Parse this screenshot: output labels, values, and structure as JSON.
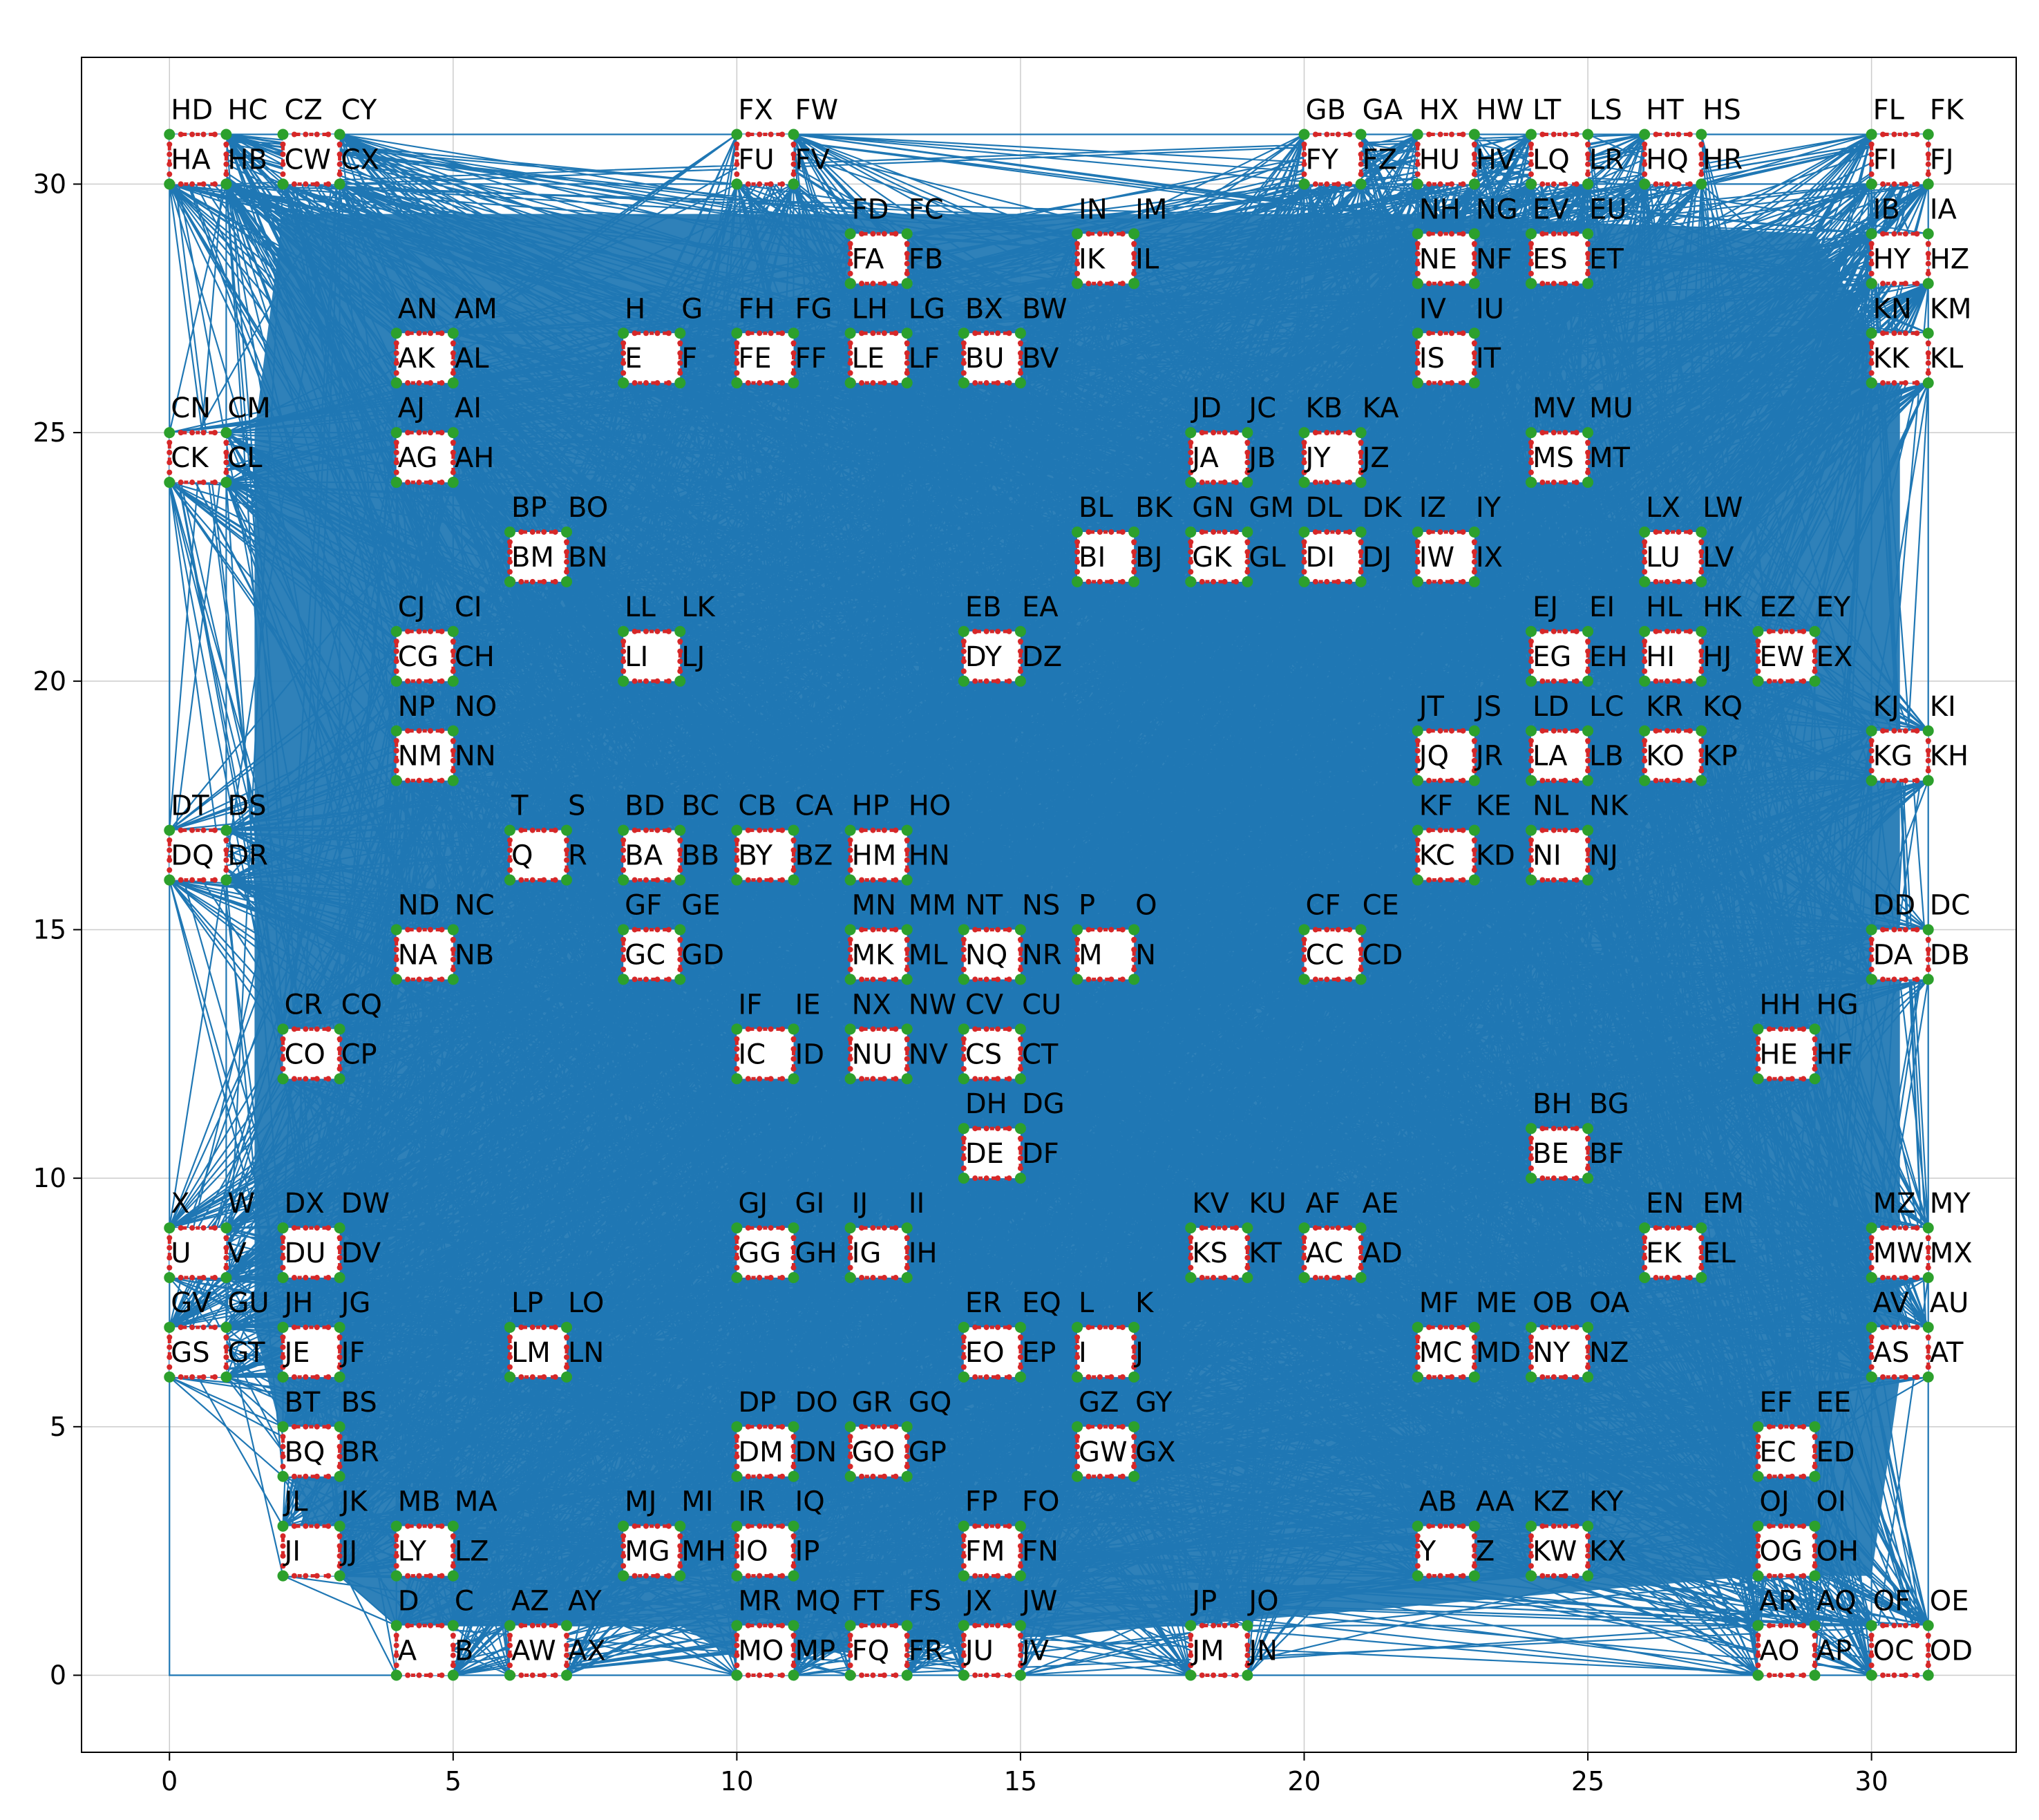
{
  "chart_data": {
    "type": "network-grid",
    "title": "",
    "xlabel": "",
    "ylabel": "",
    "xlim": [
      -1.55,
      32.55
    ],
    "ylim": [
      -1.55,
      32.55
    ],
    "xticks": [
      0,
      5,
      10,
      15,
      20,
      25,
      30
    ],
    "yticks": [
      0,
      5,
      10,
      15,
      20,
      25,
      30
    ],
    "grid": true,
    "colors": {
      "edge": "#1f77b4",
      "node_corner": "#2ca02c",
      "node_mid": "#d62728",
      "grid": "#cccccc"
    },
    "boxes": [
      {
        "x": 0,
        "y": 30,
        "labels": [
          "HA",
          "HB",
          "HC",
          "HD"
        ]
      },
      {
        "x": 2,
        "y": 30,
        "labels": [
          "CW",
          "CX",
          "CY",
          "CZ"
        ]
      },
      {
        "x": 10,
        "y": 30,
        "labels": [
          "FU",
          "FV",
          "FW",
          "FX"
        ]
      },
      {
        "x": 20,
        "y": 30,
        "labels": [
          "FY",
          "FZ",
          "GA",
          "GB"
        ]
      },
      {
        "x": 22,
        "y": 30,
        "labels": [
          "HU",
          "HV",
          "HW",
          "HX"
        ]
      },
      {
        "x": 24,
        "y": 30,
        "labels": [
          "LQ",
          "LR",
          "LS",
          "LT"
        ]
      },
      {
        "x": 26,
        "y": 30,
        "labels": [
          "HQ",
          "HR",
          "HS",
          "HT"
        ]
      },
      {
        "x": 30,
        "y": 30,
        "labels": [
          "FI",
          "FJ",
          "FK",
          "FL"
        ]
      },
      {
        "x": 12,
        "y": 28,
        "labels": [
          "FA",
          "FB",
          "FC",
          "FD"
        ]
      },
      {
        "x": 16,
        "y": 28,
        "labels": [
          "IK",
          "IL",
          "IM",
          "IN"
        ]
      },
      {
        "x": 22,
        "y": 28,
        "labels": [
          "NE",
          "NF",
          "NG",
          "NH"
        ]
      },
      {
        "x": 24,
        "y": 28,
        "labels": [
          "ES",
          "ET",
          "EU",
          "EV"
        ]
      },
      {
        "x": 30,
        "y": 28,
        "labels": [
          "HY",
          "HZ",
          "IA",
          "IB"
        ]
      },
      {
        "x": 4,
        "y": 26,
        "labels": [
          "AK",
          "AL",
          "AM",
          "AN"
        ]
      },
      {
        "x": 8,
        "y": 26,
        "labels": [
          "E",
          "F",
          "G",
          "H"
        ]
      },
      {
        "x": 10,
        "y": 26,
        "labels": [
          "FE",
          "FF",
          "FG",
          "FH"
        ]
      },
      {
        "x": 12,
        "y": 26,
        "labels": [
          "LE",
          "LF",
          "LG",
          "LH"
        ]
      },
      {
        "x": 14,
        "y": 26,
        "labels": [
          "BU",
          "BV",
          "BW",
          "BX"
        ]
      },
      {
        "x": 22,
        "y": 26,
        "labels": [
          "IS",
          "IT",
          "IU",
          "IV"
        ]
      },
      {
        "x": 30,
        "y": 26,
        "labels": [
          "KK",
          "KL",
          "KM",
          "KN"
        ]
      },
      {
        "x": 0,
        "y": 24,
        "labels": [
          "CK",
          "CL",
          "CM",
          "CN"
        ]
      },
      {
        "x": 4,
        "y": 24,
        "labels": [
          "AG",
          "AH",
          "AI",
          "AJ"
        ]
      },
      {
        "x": 18,
        "y": 24,
        "labels": [
          "JA",
          "JB",
          "JC",
          "JD"
        ]
      },
      {
        "x": 20,
        "y": 24,
        "labels": [
          "JY",
          "JZ",
          "KA",
          "KB"
        ]
      },
      {
        "x": 24,
        "y": 24,
        "labels": [
          "MS",
          "MT",
          "MU",
          "MV"
        ]
      },
      {
        "x": 6,
        "y": 22,
        "labels": [
          "BM",
          "BN",
          "BO",
          "BP"
        ]
      },
      {
        "x": 16,
        "y": 22,
        "labels": [
          "BI",
          "BJ",
          "BK",
          "BL"
        ]
      },
      {
        "x": 18,
        "y": 22,
        "labels": [
          "GK",
          "GL",
          "GM",
          "GN"
        ]
      },
      {
        "x": 20,
        "y": 22,
        "labels": [
          "DI",
          "DJ",
          "DK",
          "DL"
        ]
      },
      {
        "x": 22,
        "y": 22,
        "labels": [
          "IW",
          "IX",
          "IY",
          "IZ"
        ]
      },
      {
        "x": 26,
        "y": 22,
        "labels": [
          "LU",
          "LV",
          "LW",
          "LX"
        ]
      },
      {
        "x": 4,
        "y": 20,
        "labels": [
          "CG",
          "CH",
          "CI",
          "CJ"
        ]
      },
      {
        "x": 8,
        "y": 20,
        "labels": [
          "LI",
          "LJ",
          "LK",
          "LL"
        ]
      },
      {
        "x": 14,
        "y": 20,
        "labels": [
          "DY",
          "DZ",
          "EA",
          "EB"
        ]
      },
      {
        "x": 24,
        "y": 20,
        "labels": [
          "EG",
          "EH",
          "EI",
          "EJ"
        ]
      },
      {
        "x": 26,
        "y": 20,
        "labels": [
          "HI",
          "HJ",
          "HK",
          "HL"
        ]
      },
      {
        "x": 28,
        "y": 20,
        "labels": [
          "EW",
          "EX",
          "EY",
          "EZ"
        ]
      },
      {
        "x": 4,
        "y": 18,
        "labels": [
          "NM",
          "NN",
          "NO",
          "NP"
        ]
      },
      {
        "x": 22,
        "y": 18,
        "labels": [
          "JQ",
          "JR",
          "JS",
          "JT"
        ]
      },
      {
        "x": 24,
        "y": 18,
        "labels": [
          "LA",
          "LB",
          "LC",
          "LD"
        ]
      },
      {
        "x": 26,
        "y": 18,
        "labels": [
          "KO",
          "KP",
          "KQ",
          "KR"
        ]
      },
      {
        "x": 30,
        "y": 18,
        "labels": [
          "KG",
          "KH",
          "KI",
          "KJ"
        ]
      },
      {
        "x": 0,
        "y": 16,
        "labels": [
          "DQ",
          "DR",
          "DS",
          "DT"
        ]
      },
      {
        "x": 6,
        "y": 16,
        "labels": [
          "Q",
          "R",
          "S",
          "T"
        ]
      },
      {
        "x": 8,
        "y": 16,
        "labels": [
          "BA",
          "BB",
          "BC",
          "BD"
        ]
      },
      {
        "x": 10,
        "y": 16,
        "labels": [
          "BY",
          "BZ",
          "CA",
          "CB"
        ]
      },
      {
        "x": 12,
        "y": 16,
        "labels": [
          "HM",
          "HN",
          "HO",
          "HP"
        ]
      },
      {
        "x": 22,
        "y": 16,
        "labels": [
          "KC",
          "KD",
          "KE",
          "KF"
        ]
      },
      {
        "x": 24,
        "y": 16,
        "labels": [
          "NI",
          "NJ",
          "NK",
          "NL"
        ]
      },
      {
        "x": 4,
        "y": 14,
        "labels": [
          "NA",
          "NB",
          "NC",
          "ND"
        ]
      },
      {
        "x": 8,
        "y": 14,
        "labels": [
          "GC",
          "GD",
          "GE",
          "GF"
        ]
      },
      {
        "x": 12,
        "y": 14,
        "labels": [
          "MK",
          "ML",
          "MM",
          "MN"
        ]
      },
      {
        "x": 14,
        "y": 14,
        "labels": [
          "NQ",
          "NR",
          "NS",
          "NT"
        ]
      },
      {
        "x": 16,
        "y": 14,
        "labels": [
          "M",
          "N",
          "O",
          "P"
        ]
      },
      {
        "x": 20,
        "y": 14,
        "labels": [
          "CC",
          "CD",
          "CE",
          "CF"
        ]
      },
      {
        "x": 30,
        "y": 14,
        "labels": [
          "DA",
          "DB",
          "DC",
          "DD"
        ]
      },
      {
        "x": 2,
        "y": 12,
        "labels": [
          "CO",
          "CP",
          "CQ",
          "CR"
        ]
      },
      {
        "x": 10,
        "y": 12,
        "labels": [
          "IC",
          "ID",
          "IE",
          "IF"
        ]
      },
      {
        "x": 12,
        "y": 12,
        "labels": [
          "NU",
          "NV",
          "NW",
          "NX"
        ]
      },
      {
        "x": 14,
        "y": 12,
        "labels": [
          "CS",
          "CT",
          "CU",
          "CV"
        ]
      },
      {
        "x": 28,
        "y": 12,
        "labels": [
          "HE",
          "HF",
          "HG",
          "HH"
        ]
      },
      {
        "x": 14,
        "y": 10,
        "labels": [
          "DE",
          "DF",
          "DG",
          "DH"
        ]
      },
      {
        "x": 24,
        "y": 10,
        "labels": [
          "BE",
          "BF",
          "BG",
          "BH"
        ]
      },
      {
        "x": 0,
        "y": 8,
        "labels": [
          "U",
          "V",
          "W",
          "X"
        ]
      },
      {
        "x": 2,
        "y": 8,
        "labels": [
          "DU",
          "DV",
          "DW",
          "DX"
        ]
      },
      {
        "x": 10,
        "y": 8,
        "labels": [
          "GG",
          "GH",
          "GI",
          "GJ"
        ]
      },
      {
        "x": 12,
        "y": 8,
        "labels": [
          "IG",
          "IH",
          "II",
          "IJ"
        ]
      },
      {
        "x": 18,
        "y": 8,
        "labels": [
          "KS",
          "KT",
          "KU",
          "KV"
        ]
      },
      {
        "x": 20,
        "y": 8,
        "labels": [
          "AC",
          "AD",
          "AE",
          "AF"
        ]
      },
      {
        "x": 26,
        "y": 8,
        "labels": [
          "EK",
          "EL",
          "EM",
          "EN"
        ]
      },
      {
        "x": 30,
        "y": 8,
        "labels": [
          "MW",
          "MX",
          "MY",
          "MZ"
        ]
      },
      {
        "x": 0,
        "y": 6,
        "labels": [
          "GS",
          "GT",
          "GU",
          "GV"
        ]
      },
      {
        "x": 2,
        "y": 6,
        "labels": [
          "JE",
          "JF",
          "JG",
          "JH"
        ]
      },
      {
        "x": 6,
        "y": 6,
        "labels": [
          "LM",
          "LN",
          "LO",
          "LP"
        ]
      },
      {
        "x": 14,
        "y": 6,
        "labels": [
          "EO",
          "EP",
          "EQ",
          "ER"
        ]
      },
      {
        "x": 16,
        "y": 6,
        "labels": [
          "I",
          "J",
          "K",
          "L"
        ]
      },
      {
        "x": 22,
        "y": 6,
        "labels": [
          "MC",
          "MD",
          "ME",
          "MF"
        ]
      },
      {
        "x": 24,
        "y": 6,
        "labels": [
          "NY",
          "NZ",
          "OA",
          "OB"
        ]
      },
      {
        "x": 30,
        "y": 6,
        "labels": [
          "AS",
          "AT",
          "AU",
          "AV"
        ]
      },
      {
        "x": 2,
        "y": 4,
        "labels": [
          "BQ",
          "BR",
          "BS",
          "BT"
        ]
      },
      {
        "x": 10,
        "y": 4,
        "labels": [
          "DM",
          "DN",
          "DO",
          "DP"
        ]
      },
      {
        "x": 12,
        "y": 4,
        "labels": [
          "GO",
          "GP",
          "GQ",
          "GR"
        ]
      },
      {
        "x": 16,
        "y": 4,
        "labels": [
          "GW",
          "GX",
          "GY",
          "GZ"
        ]
      },
      {
        "x": 28,
        "y": 4,
        "labels": [
          "EC",
          "ED",
          "EE",
          "EF"
        ]
      },
      {
        "x": 2,
        "y": 2,
        "labels": [
          "JI",
          "JJ",
          "JK",
          "JL"
        ]
      },
      {
        "x": 4,
        "y": 2,
        "labels": [
          "LY",
          "LZ",
          "MA",
          "MB"
        ]
      },
      {
        "x": 8,
        "y": 2,
        "labels": [
          "MG",
          "MH",
          "MI",
          "MJ"
        ]
      },
      {
        "x": 10,
        "y": 2,
        "labels": [
          "IO",
          "IP",
          "IQ",
          "IR"
        ]
      },
      {
        "x": 14,
        "y": 2,
        "labels": [
          "FM",
          "FN",
          "FO",
          "FP"
        ]
      },
      {
        "x": 22,
        "y": 2,
        "labels": [
          "Y",
          "Z",
          "AA",
          "AB"
        ]
      },
      {
        "x": 24,
        "y": 2,
        "labels": [
          "KW",
          "KX",
          "KY",
          "KZ"
        ]
      },
      {
        "x": 28,
        "y": 2,
        "labels": [
          "OG",
          "OH",
          "OI",
          "OJ"
        ]
      },
      {
        "x": 4,
        "y": 0,
        "labels": [
          "A",
          "B",
          "C",
          "D"
        ]
      },
      {
        "x": 6,
        "y": 0,
        "labels": [
          "AW",
          "AX",
          "AY",
          "AZ"
        ]
      },
      {
        "x": 10,
        "y": 0,
        "labels": [
          "MO",
          "MP",
          "MQ",
          "MR"
        ]
      },
      {
        "x": 12,
        "y": 0,
        "labels": [
          "FQ",
          "FR",
          "FS",
          "FT"
        ]
      },
      {
        "x": 14,
        "y": 0,
        "labels": [
          "JU",
          "JV",
          "JW",
          "JX"
        ]
      },
      {
        "x": 18,
        "y": 0,
        "labels": [
          "JM",
          "JN",
          "JO",
          "JP"
        ]
      },
      {
        "x": 28,
        "y": 0,
        "labels": [
          "AO",
          "AP",
          "AQ",
          "AR"
        ]
      },
      {
        "x": 30,
        "y": 0,
        "labels": [
          "OC",
          "OD",
          "OE",
          "OF"
        ]
      }
    ]
  }
}
